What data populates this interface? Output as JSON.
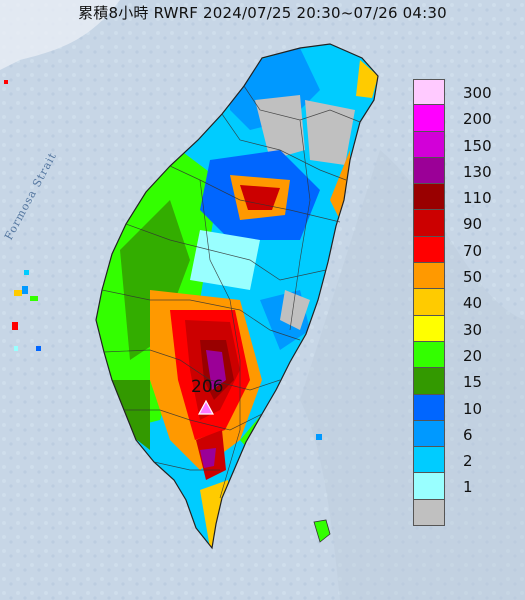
{
  "header": {
    "title": "累積8小時 RWRF 2024/07/25 20:30~07/26 04:30"
  },
  "map": {
    "strait_label": "Formosa Strait",
    "peak": {
      "value": "206"
    }
  },
  "legend": {
    "items": [
      {
        "label": "300",
        "color": "#ffcaff"
      },
      {
        "label": "200",
        "color": "#ff00ff"
      },
      {
        "label": "150",
        "color": "#d200d8"
      },
      {
        "label": "130",
        "color": "#9b0097"
      },
      {
        "label": "110",
        "color": "#990000"
      },
      {
        "label": "90",
        "color": "#cc0000"
      },
      {
        "label": "70",
        "color": "#ff0000"
      },
      {
        "label": "50",
        "color": "#ff9900"
      },
      {
        "label": "40",
        "color": "#ffcb00"
      },
      {
        "label": "30",
        "color": "#ffff00"
      },
      {
        "label": "20",
        "color": "#33ff00"
      },
      {
        "label": "15",
        "color": "#339900"
      },
      {
        "label": "10",
        "color": "#0066ff"
      },
      {
        "label": "6",
        "color": "#0099ff"
      },
      {
        "label": "2",
        "color": "#00ccff"
      },
      {
        "label": "1",
        "color": "#99ffff"
      },
      {
        "label": "",
        "color": "#c0c0c0"
      }
    ]
  }
}
